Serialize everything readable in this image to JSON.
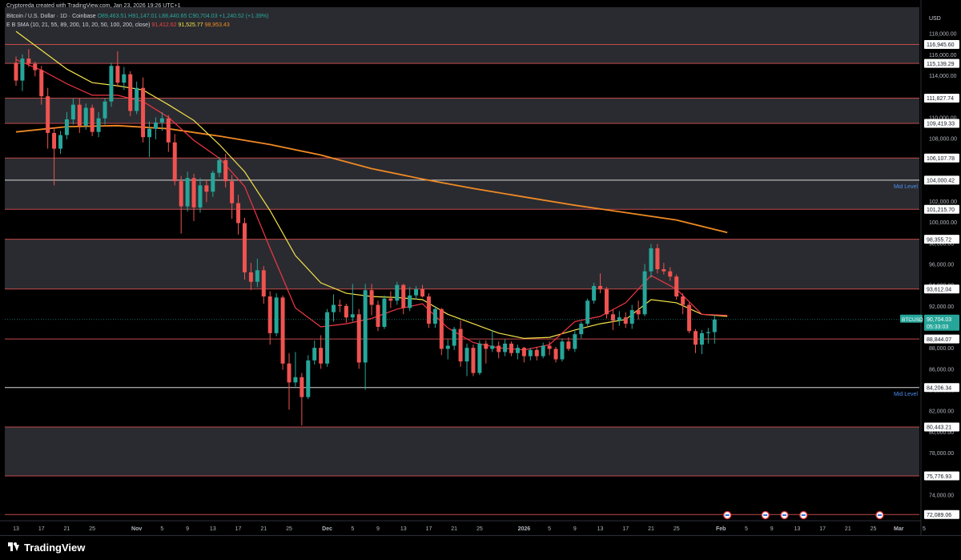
{
  "header": {
    "credit": "Cryptoreda created with TradingView.com, Jan 23, 2026 19:26 UTC+1",
    "symbol": "Bitcoin / U.S. Dollar · 1D · Coinbase",
    "ohlc": "O89,463.51 H91,147.01 L88,440.65 C90,704.03 +1,240.52 (+1.39%)",
    "indicator_name": "E B SMA (10, 21, 55, 89, 200, 10, 20, 50, 100, 200, close)",
    "ind_val1": "91,412.62",
    "ind_val2": "91,525.77",
    "ind_val3": "98,953.43"
  },
  "colors": {
    "background": "#000000",
    "band": "#2a2b30",
    "level_line": "#c24a4a",
    "mid_line": "#d9d9d9",
    "mid_label": "#4d8ef0",
    "up": "#26a69a",
    "down": "#ef5350",
    "ema_red": "#f23645",
    "ema_yellow": "#f5e24a",
    "sma_orange": "#f08a24",
    "price_tag": "#26a69a"
  },
  "chart_data": {
    "type": "candlestick",
    "currency": "USD",
    "ylim": [
      71500,
      120500
    ],
    "price_ticks": [
      "118,000.00",
      "116,000.00",
      "114,000.00",
      "112,000.00",
      "110,000.00",
      "108,000.00",
      "106,000.00",
      "104,000.00",
      "102,000.00",
      "100,000.00",
      "98,000.00",
      "96,000.00",
      "94,000.00",
      "92,000.00",
      "90,000.00",
      "88,000.00",
      "86,000.00",
      "84,000.00",
      "82,000.00",
      "80,000.00",
      "78,000.00",
      "76,000.00",
      "74,000.00"
    ],
    "levels": [
      {
        "value": 116945.6,
        "label": "116,945.60"
      },
      {
        "value": 115139.29,
        "label": "115,139.29"
      },
      {
        "value": 111827.74,
        "label": "111,827.74"
      },
      {
        "value": 109419.33,
        "label": "109,419.33"
      },
      {
        "value": 106107.78,
        "label": "106,107.78"
      },
      {
        "value": 101215.7,
        "label": "101,215.70"
      },
      {
        "value": 98355.72,
        "label": "98,355.72"
      },
      {
        "value": 93612.04,
        "label": "93,612.04"
      },
      {
        "value": 88844.07,
        "label": "88,844.07"
      },
      {
        "value": 80443.21,
        "label": "80,443.21"
      },
      {
        "value": 75776.93,
        "label": "75,776.93"
      },
      {
        "value": 72089.06,
        "label": "72,089.06"
      }
    ],
    "bands": [
      [
        115139.29,
        116945.6
      ],
      [
        109419.33,
        111827.74
      ],
      [
        101215.7,
        106107.78
      ],
      [
        93612.04,
        98355.72
      ],
      [
        75776.93,
        80443.21
      ]
    ],
    "mid_levels": [
      {
        "value": 104000.42,
        "label": "104,000.42",
        "tag": "Mid Level"
      },
      {
        "value": 84206.34,
        "label": "84,206.34",
        "tag": "Mid Level"
      }
    ],
    "last_price": {
      "value": 90704.03,
      "label": "BTCUSD",
      "price": "90,704.03",
      "countdown": "05:33:03"
    },
    "x_ticks": [
      "13",
      "17",
      "21",
      "25",
      "Nov",
      "5",
      "9",
      "13",
      "17",
      "21",
      "25",
      "Dec",
      "5",
      "9",
      "13",
      "17",
      "21",
      "25",
      "2026",
      "5",
      "9",
      "13",
      "17",
      "21",
      "25",
      "Feb",
      "5",
      "9",
      "13",
      "17",
      "21",
      "25",
      "Mar",
      "5"
    ],
    "x_tick_days": [
      0,
      4,
      8,
      12,
      19,
      23,
      27,
      31,
      35,
      39,
      43,
      49,
      53,
      57,
      61,
      65,
      69,
      73,
      80,
      84,
      88,
      92,
      96,
      100,
      104,
      111,
      115,
      119,
      123,
      127,
      131,
      135,
      139,
      143
    ],
    "candles": [
      [
        115200,
        115800,
        113000,
        113500
      ],
      [
        113500,
        116000,
        112500,
        115600
      ],
      [
        115600,
        116500,
        114800,
        115100
      ],
      [
        115100,
        115300,
        113900,
        114500
      ],
      [
        114500,
        114900,
        111200,
        112000
      ],
      [
        112000,
        112800,
        107000,
        108500
      ],
      [
        108500,
        109000,
        103500,
        107000
      ],
      [
        107000,
        108700,
        106500,
        108300
      ],
      [
        108300,
        110500,
        107900,
        109800
      ],
      [
        109800,
        111800,
        109300,
        111200
      ],
      [
        111200,
        111800,
        108500,
        109200
      ],
      [
        109200,
        111300,
        108800,
        110900
      ],
      [
        110900,
        111200,
        108200,
        108600
      ],
      [
        108600,
        110500,
        108100,
        109900
      ],
      [
        109900,
        111800,
        109300,
        111500
      ],
      [
        111500,
        115200,
        111000,
        114900
      ],
      [
        114900,
        116300,
        112900,
        113300
      ],
      [
        113300,
        114800,
        112600,
        114100
      ],
      [
        114100,
        114400,
        110100,
        110600
      ],
      [
        110600,
        113400,
        110300,
        112800
      ],
      [
        112800,
        113800,
        107600,
        108100
      ],
      [
        108100,
        109600,
        106200,
        108900
      ],
      [
        108900,
        110000,
        107900,
        109500
      ],
      [
        109500,
        110500,
        108700,
        109900
      ],
      [
        109900,
        110200,
        106700,
        107600
      ],
      [
        107600,
        108400,
        103500,
        103900
      ],
      [
        103900,
        104400,
        98900,
        101500
      ],
      [
        101500,
        104800,
        101000,
        104200
      ],
      [
        104200,
        104600,
        100100,
        101400
      ],
      [
        101400,
        104200,
        100900,
        103500
      ],
      [
        103500,
        104000,
        101900,
        102900
      ],
      [
        102900,
        104900,
        102400,
        104700
      ],
      [
        104700,
        106200,
        104300,
        105900
      ],
      [
        105900,
        106500,
        103300,
        103900
      ],
      [
        103900,
        104500,
        100300,
        101800
      ],
      [
        101800,
        102600,
        98800,
        99900
      ],
      [
        99900,
        100400,
        94500,
        95200
      ],
      [
        95200,
        96100,
        93500,
        94300
      ],
      [
        94300,
        96500,
        93800,
        95400
      ],
      [
        95400,
        95800,
        92200,
        92900
      ],
      [
        92900,
        93400,
        88300,
        89400
      ],
      [
        89400,
        93200,
        89100,
        92800
      ],
      [
        92800,
        93000,
        85900,
        86500
      ],
      [
        86500,
        87500,
        82100,
        84700
      ],
      [
        84700,
        87600,
        84300,
        85200
      ],
      [
        85200,
        85600,
        80600,
        83300
      ],
      [
        83300,
        87300,
        83100,
        86800
      ],
      [
        86800,
        88700,
        86400,
        88000
      ],
      [
        88000,
        89200,
        86000,
        86500
      ],
      [
        86500,
        91700,
        86200,
        91400
      ],
      [
        91400,
        93100,
        90500,
        92100
      ],
      [
        92100,
        92600,
        91400,
        92000
      ],
      [
        92000,
        92200,
        90400,
        90900
      ],
      [
        90900,
        94100,
        90500,
        91200
      ],
      [
        91200,
        91700,
        86000,
        86600
      ],
      [
        86600,
        94100,
        84000,
        93500
      ],
      [
        93500,
        94100,
        91100,
        92100
      ],
      [
        92100,
        92500,
        89600,
        90000
      ],
      [
        90000,
        93000,
        89800,
        92700
      ],
      [
        92700,
        93400,
        91800,
        92500
      ],
      [
        92500,
        94300,
        92100,
        94000
      ],
      [
        94000,
        94100,
        91200,
        91800
      ],
      [
        91800,
        93800,
        91500,
        93000
      ],
      [
        93000,
        93900,
        92600,
        93600
      ],
      [
        93600,
        94000,
        92800,
        92900
      ],
      [
        92900,
        93200,
        89900,
        90300
      ],
      [
        90300,
        92000,
        89900,
        91700
      ],
      [
        91700,
        91800,
        87300,
        87900
      ],
      [
        87900,
        88800,
        86900,
        88200
      ],
      [
        88200,
        90000,
        87800,
        89800
      ],
      [
        89800,
        90600,
        86200,
        86700
      ],
      [
        86700,
        88400,
        85300,
        88000
      ],
      [
        88000,
        88300,
        85300,
        85600
      ],
      [
        85600,
        88700,
        85400,
        88400
      ],
      [
        88400,
        88700,
        86500,
        87900
      ],
      [
        87900,
        89700,
        87600,
        88200
      ],
      [
        88200,
        88600,
        87000,
        87600
      ],
      [
        87600,
        88800,
        87200,
        88400
      ],
      [
        88400,
        88600,
        87200,
        87500
      ],
      [
        87500,
        88300,
        86900,
        88000
      ],
      [
        88000,
        88100,
        86600,
        87200
      ],
      [
        87200,
        88000,
        86800,
        87800
      ],
      [
        87800,
        88100,
        86800,
        87200
      ],
      [
        87200,
        88500,
        87000,
        88200
      ],
      [
        88200,
        88600,
        87300,
        87900
      ],
      [
        87900,
        88100,
        86600,
        86900
      ],
      [
        86900,
        88900,
        86700,
        88600
      ],
      [
        88600,
        89000,
        87700,
        87900
      ],
      [
        87900,
        89600,
        87600,
        89300
      ],
      [
        89300,
        90500,
        88900,
        90300
      ],
      [
        90300,
        92700,
        90100,
        92500
      ],
      [
        92500,
        94200,
        92200,
        93900
      ],
      [
        93900,
        95100,
        93200,
        93600
      ],
      [
        93600,
        93800,
        90800,
        91200
      ],
      [
        91200,
        91700,
        89700,
        90600
      ],
      [
        90600,
        91500,
        90100,
        90900
      ],
      [
        90900,
        91400,
        89900,
        90300
      ],
      [
        90300,
        92100,
        89800,
        91600
      ],
      [
        91600,
        92500,
        90700,
        91200
      ],
      [
        91200,
        96000,
        91000,
        95300
      ],
      [
        95300,
        97900,
        94700,
        97500
      ],
      [
        97500,
        97900,
        95100,
        95500
      ],
      [
        95500,
        96100,
        95000,
        95300
      ],
      [
        95300,
        95700,
        94400,
        94800
      ],
      [
        94800,
        95000,
        92600,
        92900
      ],
      [
        92900,
        93200,
        91200,
        92100
      ],
      [
        92100,
        92300,
        89400,
        89600
      ],
      [
        89600,
        89800,
        87500,
        88300
      ],
      [
        88300,
        89700,
        87400,
        89400
      ],
      [
        89400,
        89900,
        88400,
        89500
      ],
      [
        89500,
        91100,
        88400,
        90704
      ]
    ],
    "ema_red": [
      [
        0,
        115500
      ],
      [
        4,
        114500
      ],
      [
        8,
        113200
      ],
      [
        12,
        112100
      ],
      [
        16,
        112100
      ],
      [
        20,
        111500
      ],
      [
        24,
        110000
      ],
      [
        28,
        107800
      ],
      [
        32,
        106100
      ],
      [
        36,
        103400
      ],
      [
        40,
        97500
      ],
      [
        44,
        91800
      ],
      [
        48,
        90000
      ],
      [
        52,
        90300
      ],
      [
        56,
        90800
      ],
      [
        60,
        91700
      ],
      [
        64,
        92200
      ],
      [
        68,
        89900
      ],
      [
        72,
        88500
      ],
      [
        76,
        88000
      ],
      [
        80,
        87800
      ],
      [
        84,
        88300
      ],
      [
        88,
        90500
      ],
      [
        92,
        91000
      ],
      [
        96,
        92300
      ],
      [
        100,
        94900
      ],
      [
        104,
        93600
      ],
      [
        108,
        91200
      ],
      [
        112,
        91100
      ]
    ],
    "ema_yellow": [
      [
        0,
        118200
      ],
      [
        4,
        116400
      ],
      [
        8,
        114600
      ],
      [
        12,
        113300
      ],
      [
        16,
        113000
      ],
      [
        20,
        112600
      ],
      [
        24,
        111200
      ],
      [
        28,
        109700
      ],
      [
        32,
        107400
      ],
      [
        36,
        104800
      ],
      [
        40,
        101100
      ],
      [
        44,
        96800
      ],
      [
        48,
        94200
      ],
      [
        52,
        93200
      ],
      [
        56,
        92900
      ],
      [
        60,
        92800
      ],
      [
        64,
        92600
      ],
      [
        68,
        91200
      ],
      [
        72,
        90300
      ],
      [
        76,
        89400
      ],
      [
        80,
        88900
      ],
      [
        84,
        89000
      ],
      [
        88,
        89700
      ],
      [
        92,
        90300
      ],
      [
        96,
        90700
      ],
      [
        100,
        92600
      ],
      [
        104,
        92300
      ],
      [
        108,
        91200
      ],
      [
        112,
        91000
      ]
    ],
    "sma_orange": [
      [
        0,
        108600
      ],
      [
        8,
        109100
      ],
      [
        16,
        109200
      ],
      [
        24,
        108900
      ],
      [
        32,
        108200
      ],
      [
        40,
        107400
      ],
      [
        48,
        106400
      ],
      [
        56,
        105100
      ],
      [
        64,
        104100
      ],
      [
        72,
        103200
      ],
      [
        80,
        102400
      ],
      [
        88,
        101600
      ],
      [
        96,
        100900
      ],
      [
        104,
        100200
      ],
      [
        112,
        99000
      ]
    ],
    "event_markers": [
      {
        "day": 112,
        "label": "4"
      },
      {
        "day": 118,
        "label": ""
      },
      {
        "day": 121,
        "label": ""
      },
      {
        "day": 124,
        "label": ""
      },
      {
        "day": 136,
        "label": ""
      }
    ]
  },
  "footer": {
    "brand": "TradingView"
  }
}
